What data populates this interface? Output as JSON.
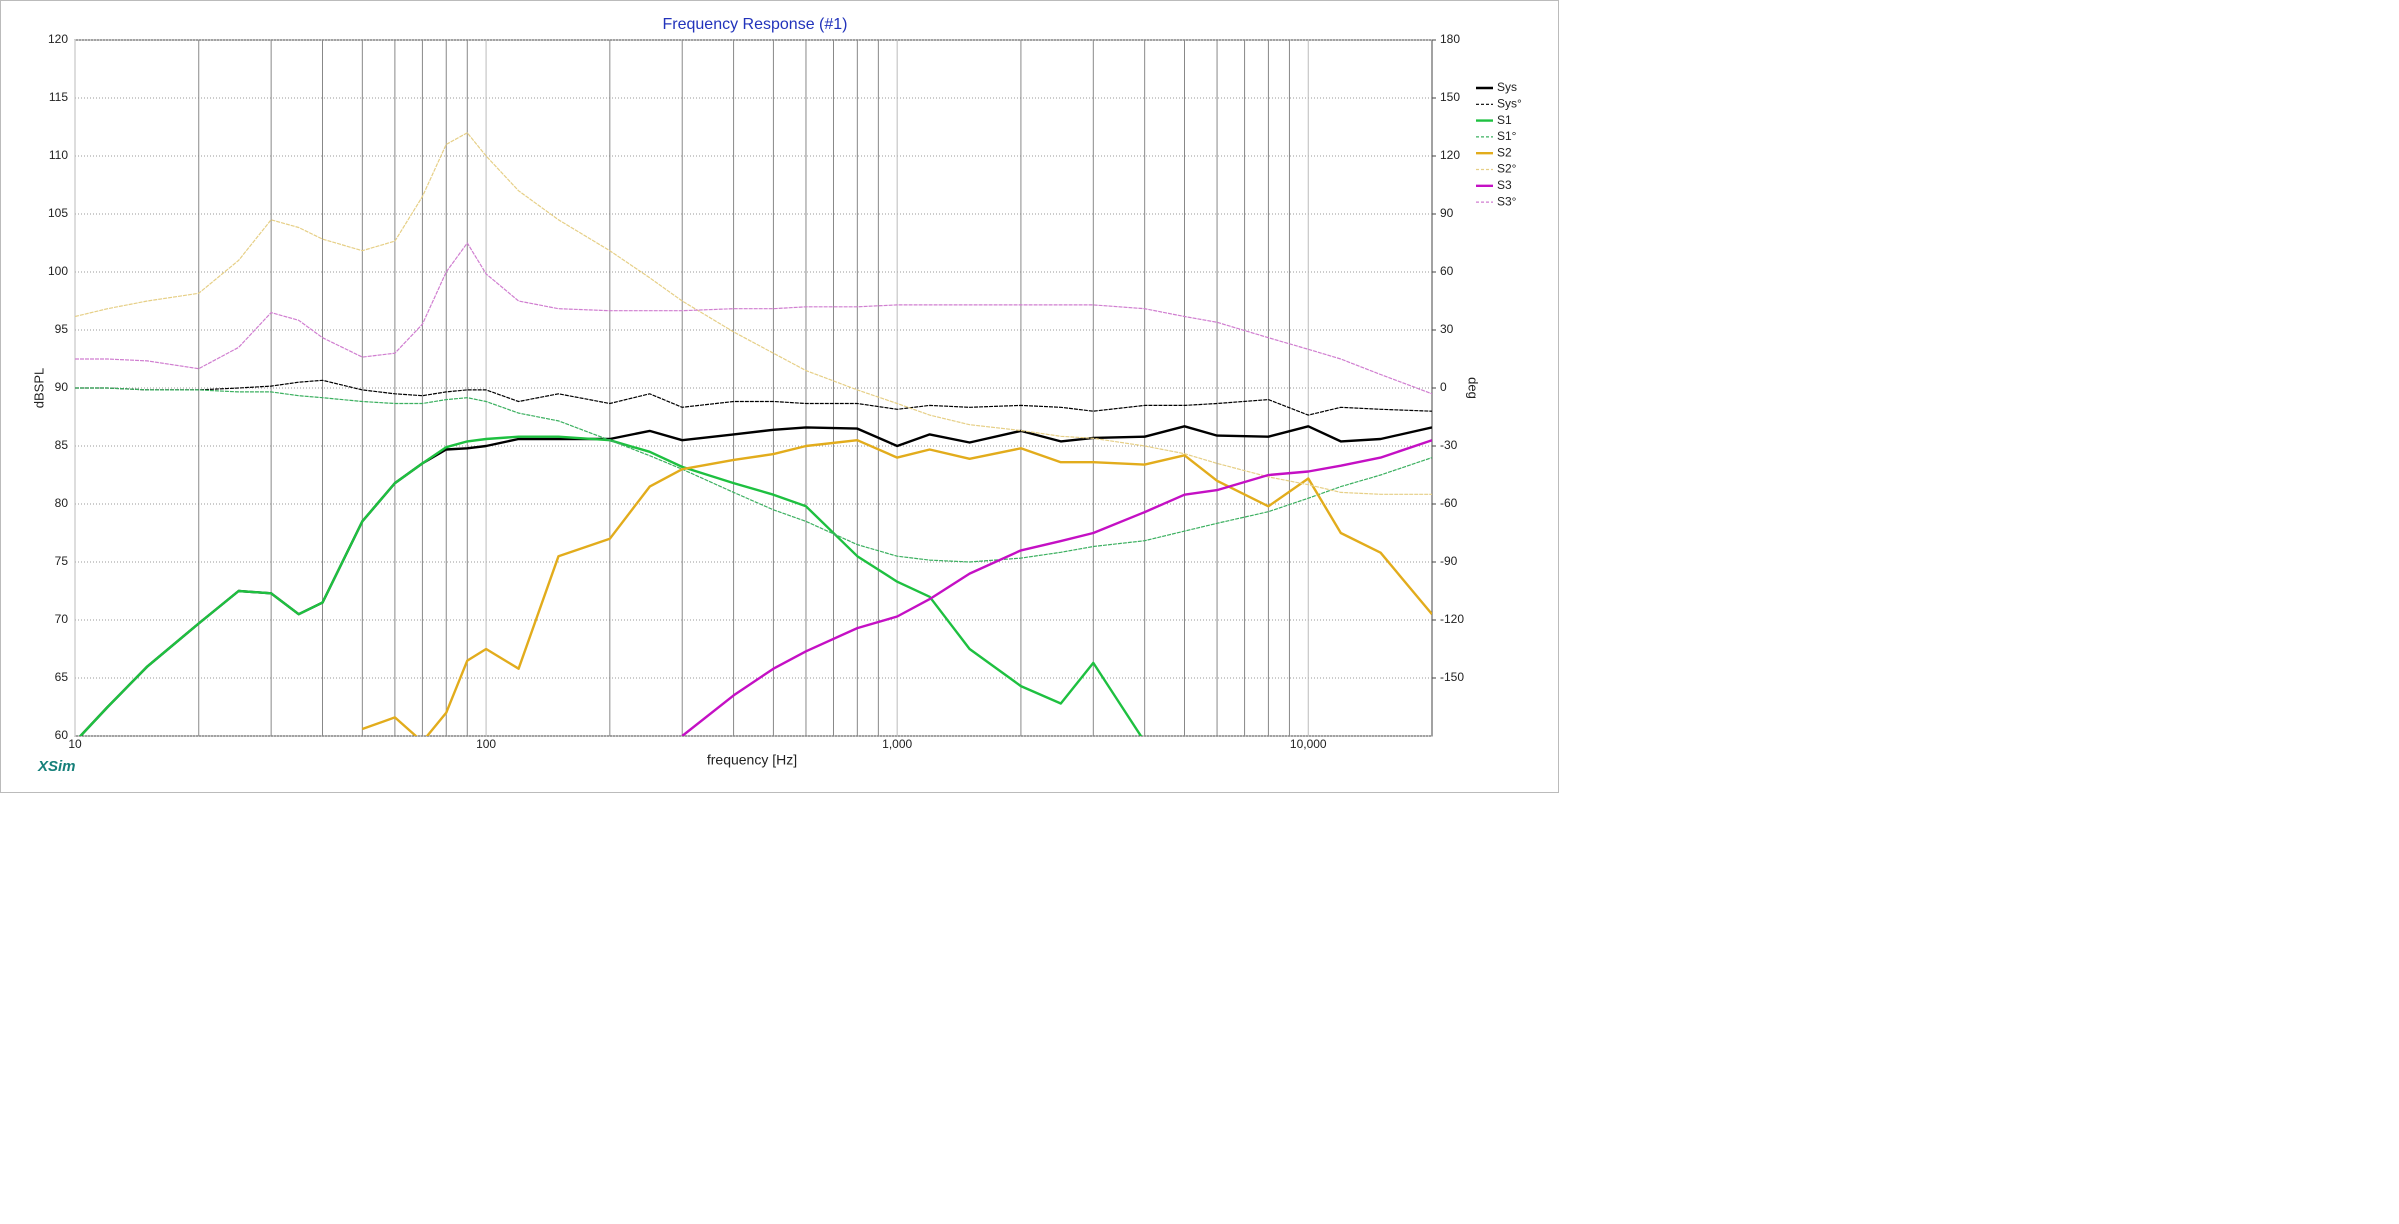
{
  "chart_data": {
    "type": "line",
    "title": "Frequency Response (#1)",
    "x_label": "frequency [Hz]",
    "y_label": "dBSPL",
    "y2_label": "deg",
    "watermark": "XSim",
    "x": [
      10,
      12,
      15,
      20,
      25,
      30,
      35,
      40,
      50,
      60,
      70,
      80,
      90,
      100,
      120,
      150,
      200,
      250,
      300,
      400,
      500,
      600,
      800,
      1000,
      1200,
      1500,
      2000,
      2500,
      3000,
      4000,
      5000,
      6000,
      8000,
      10000,
      12000,
      15000,
      20000
    ],
    "xlim": [
      10,
      20000
    ],
    "xlog": true,
    "xticks": [
      10,
      100,
      {
        "value": 1000,
        "label": "1,000"
      },
      {
        "value": 10000,
        "label": "10,000"
      }
    ],
    "xminor": [
      20,
      30,
      40,
      50,
      60,
      70,
      80,
      90,
      200,
      300,
      400,
      500,
      600,
      700,
      800,
      900,
      2000,
      3000,
      4000,
      5000,
      6000,
      7000,
      8000,
      9000
    ],
    "ylim": [
      60,
      120
    ],
    "yticks": [
      60,
      65,
      70,
      75,
      80,
      85,
      90,
      95,
      100,
      105,
      110,
      115,
      120
    ],
    "y2lim": [
      -180,
      180
    ],
    "y2ticks": [
      -150,
      -120,
      -90,
      -60,
      -30,
      0,
      30,
      60,
      90,
      120,
      150,
      180
    ],
    "grid": true,
    "series": [
      {
        "name": "Sys",
        "color": "#000000",
        "dash": false,
        "values": [
          59.5,
          62.5,
          66,
          69.7,
          72.5,
          72.3,
          70.5,
          71.5,
          78.5,
          81.8,
          83.5,
          84.7,
          84.8,
          85,
          85.6,
          85.6,
          85.6,
          86.3,
          85.5,
          86,
          86.4,
          86.6,
          86.5,
          85,
          86,
          85.3,
          86.3,
          85.4,
          85.7,
          85.8,
          86.7,
          85.9,
          85.8,
          86.7,
          85.4,
          85.6,
          86.6
        ]
      },
      {
        "name": "Sys°",
        "color": "#000000",
        "dash": true,
        "axis": "y2",
        "values": [
          0,
          0,
          -1,
          -1,
          0,
          1,
          3,
          4,
          -1,
          -3,
          -4,
          -2,
          -1,
          -1,
          -7,
          -3,
          -8,
          -3,
          -10,
          -7,
          -7,
          -8,
          -8,
          -11,
          -9,
          -10,
          -9,
          -10,
          -12,
          -9,
          -9,
          -8,
          -6,
          -14,
          -10,
          -11,
          -12
        ]
      },
      {
        "name": "S1",
        "color": "#1ec040",
        "dash": false,
        "values": [
          59.5,
          62.5,
          66,
          69.7,
          72.5,
          72.3,
          70.5,
          71.5,
          78.5,
          81.8,
          83.5,
          84.9,
          85.4,
          85.6,
          85.8,
          85.8,
          85.5,
          84.5,
          83.2,
          81.8,
          80.8,
          79.8,
          75.5,
          73.3,
          72,
          67.5,
          64.3,
          62.8,
          66.3,
          59.5,
          null,
          null,
          null,
          null,
          null,
          null,
          null
        ]
      },
      {
        "name": "S1°",
        "color": "#3cb060",
        "dash": true,
        "axis": "y2",
        "values": [
          0,
          0,
          -1,
          -1,
          -2,
          -2,
          -4,
          -5,
          -7,
          -8,
          -8,
          -6,
          -5,
          -7,
          -13,
          -17,
          -27,
          -35,
          -42,
          -54,
          -63,
          -69,
          -81,
          -87,
          -89,
          -90,
          -88,
          -85,
          -82,
          -79,
          -74,
          -70,
          -64,
          -57,
          -51,
          -45,
          -36
        ]
      },
      {
        "name": "S2",
        "color": "#e2ac1c",
        "dash": false,
        "values": [
          null,
          null,
          null,
          null,
          null,
          null,
          null,
          null,
          60.6,
          61.6,
          59.5,
          62,
          66.5,
          67.5,
          65.8,
          75.5,
          77,
          81.5,
          83,
          83.8,
          84.3,
          85,
          85.5,
          84,
          84.7,
          83.9,
          84.8,
          83.6,
          83.6,
          83.4,
          84.2,
          82,
          79.8,
          82.2,
          77.5,
          75.8,
          70.5
        ]
      },
      {
        "name": "S2°",
        "color": "#e6cf86",
        "dash": true,
        "axis": "y2",
        "values": [
          37,
          41,
          45,
          49,
          66,
          87,
          83,
          77,
          71,
          76,
          99,
          126,
          132,
          120,
          102,
          87,
          71,
          57,
          45,
          29,
          18,
          9,
          -1,
          -8,
          -14,
          -19,
          -22,
          -25,
          -26,
          -30,
          -34,
          -39,
          -46,
          -50,
          -54,
          -55,
          -55
        ]
      },
      {
        "name": "S3",
        "color": "#c410c4",
        "dash": false,
        "values": [
          null,
          null,
          null,
          null,
          null,
          null,
          null,
          null,
          null,
          null,
          null,
          null,
          null,
          null,
          null,
          null,
          null,
          null,
          60,
          63.5,
          65.8,
          67.3,
          69.3,
          70.3,
          71.8,
          74,
          76,
          76.8,
          77.5,
          79.3,
          80.8,
          81.2,
          82.5,
          82.8,
          83.3,
          84,
          85.5
        ]
      },
      {
        "name": "S3°",
        "color": "#d07ed0",
        "dash": true,
        "axis": "y2",
        "values": [
          15,
          15,
          14,
          10,
          21,
          39,
          35,
          26,
          16,
          18,
          33,
          60,
          75,
          59,
          45,
          41,
          40,
          40,
          40,
          41,
          41,
          42,
          42,
          43,
          43,
          43,
          43,
          43,
          43,
          41,
          37,
          34,
          26,
          20,
          15,
          7,
          -3
        ]
      }
    ]
  }
}
